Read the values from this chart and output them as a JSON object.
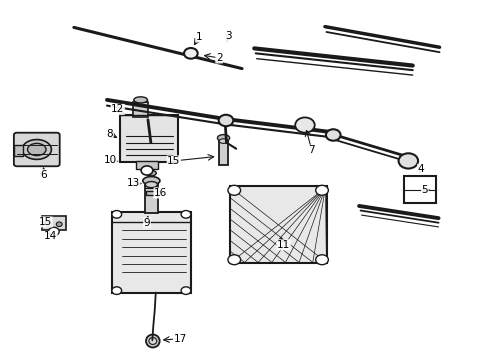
{
  "bg_color": "#ffffff",
  "line_color": "#1a1a1a",
  "text_color": "#000000",
  "fig_width": 4.89,
  "fig_height": 3.6,
  "dpi": 100,
  "label_fontsize": 7.5
}
